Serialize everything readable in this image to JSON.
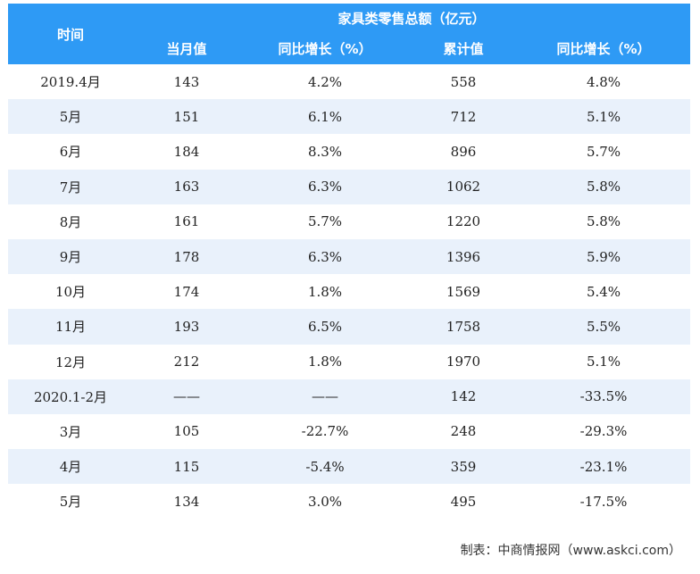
{
  "header": {
    "time": "时间",
    "group": "家具类零售总额（亿元）",
    "col_month_value": "当月值",
    "col_month_yoy": "同比增长（%）",
    "col_cumulative": "累计值",
    "col_cumulative_yoy": "同比增长（%）"
  },
  "rows": [
    {
      "time": "2019.4月",
      "month": "143",
      "month_yoy": "4.2%",
      "cum": "558",
      "cum_yoy": "4.8%"
    },
    {
      "time": "5月",
      "month": "151",
      "month_yoy": "6.1%",
      "cum": "712",
      "cum_yoy": "5.1%"
    },
    {
      "time": "6月",
      "month": "184",
      "month_yoy": "8.3%",
      "cum": "896",
      "cum_yoy": "5.7%"
    },
    {
      "time": "7月",
      "month": "163",
      "month_yoy": "6.3%",
      "cum": "1062",
      "cum_yoy": "5.8%"
    },
    {
      "time": "8月",
      "month": "161",
      "month_yoy": "5.7%",
      "cum": "1220",
      "cum_yoy": "5.8%"
    },
    {
      "time": "9月",
      "month": "178",
      "month_yoy": "6.3%",
      "cum": "1396",
      "cum_yoy": "5.9%"
    },
    {
      "time": "10月",
      "month": "174",
      "month_yoy": "1.8%",
      "cum": "1569",
      "cum_yoy": "5.4%"
    },
    {
      "time": "11月",
      "month": "193",
      "month_yoy": "6.5%",
      "cum": "1758",
      "cum_yoy": "5.5%"
    },
    {
      "time": "12月",
      "month": "212",
      "month_yoy": "1.8%",
      "cum": "1970",
      "cum_yoy": "5.1%"
    },
    {
      "time": "2020.1-2月",
      "month": "——",
      "month_yoy": "——",
      "cum": "142",
      "cum_yoy": "-33.5%"
    },
    {
      "time": "3月",
      "month": "105",
      "month_yoy": "-22.7%",
      "cum": "248",
      "cum_yoy": "-29.3%"
    },
    {
      "time": "4月",
      "month": "115",
      "month_yoy": "-5.4%",
      "cum": "359",
      "cum_yoy": "-23.1%"
    },
    {
      "time": "5月",
      "month": "134",
      "month_yoy": "3.0%",
      "cum": "495",
      "cum_yoy": "-17.5%"
    }
  ],
  "footer": "制表：中商情报网（www.askci.com）",
  "colors": {
    "header_bg": "#2e9af5",
    "row_alt": "#e9f1fb"
  }
}
